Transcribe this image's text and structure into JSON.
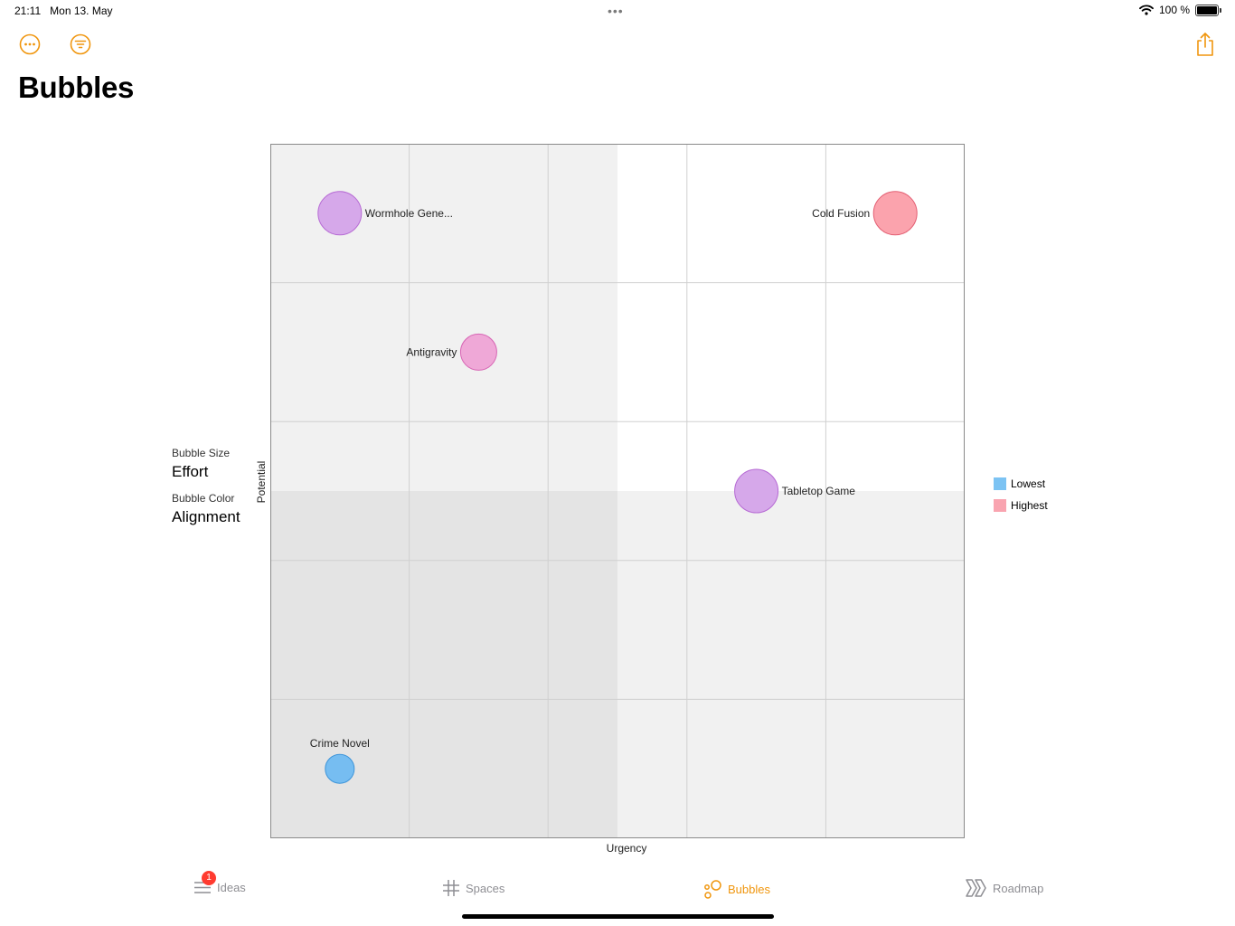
{
  "status_bar": {
    "time": "21:11",
    "date": "Mon 13. May",
    "battery": "100 %"
  },
  "header": {
    "title": "Bubbles"
  },
  "toolbar": {
    "more_icon": "ellipsis-circle-icon",
    "filter_icon": "filter-icon",
    "share_icon": "share-icon",
    "accent": "#f0960e"
  },
  "settings": {
    "bubble_size_caption": "Bubble Size",
    "bubble_size_value": "Effort",
    "bubble_color_caption": "Bubble Color",
    "bubble_color_value": "Alignment"
  },
  "legend": {
    "items": [
      {
        "label": "Lowest",
        "color": "#7cc3f3"
      },
      {
        "label": "Highest",
        "color": "#f9a4b0"
      }
    ]
  },
  "chart_data": {
    "type": "scatter",
    "title": "",
    "xlabel": "Urgency",
    "ylabel": "Potential",
    "xlim": [
      0,
      5
    ],
    "ylim": [
      0,
      5
    ],
    "grid": true,
    "size_by": "Effort",
    "color_by": "Alignment",
    "points": [
      {
        "label": "Wormhole Gene...",
        "x": 0.5,
        "y": 4.5,
        "size": 4,
        "fill": "#d6a8ea",
        "stroke": "#b66ad4",
        "label_side": "right"
      },
      {
        "label": "Cold Fusion",
        "x": 4.5,
        "y": 4.5,
        "size": 4,
        "fill": "#fba3ad",
        "stroke": "#e35e72",
        "label_side": "left"
      },
      {
        "label": "Antigravity",
        "x": 1.5,
        "y": 3.5,
        "size": 3,
        "fill": "#efa8d7",
        "stroke": "#d765b4",
        "label_side": "left"
      },
      {
        "label": "Tabletop Game",
        "x": 3.5,
        "y": 2.5,
        "size": 4,
        "fill": "#d6a8ea",
        "stroke": "#b66ad4",
        "label_side": "right"
      },
      {
        "label": "Crime Novel",
        "x": 0.5,
        "y": 0.5,
        "size": 2,
        "fill": "#76bdf1",
        "stroke": "#3d94d9",
        "label_side": "above"
      }
    ]
  },
  "tabs": [
    {
      "label": "Ideas",
      "icon": "list-icon",
      "badge": "1",
      "active": false
    },
    {
      "label": "Spaces",
      "icon": "grid-icon",
      "active": false
    },
    {
      "label": "Bubbles",
      "icon": "bubbles-icon",
      "active": true
    },
    {
      "label": "Roadmap",
      "icon": "roadmap-icon",
      "active": false
    }
  ]
}
